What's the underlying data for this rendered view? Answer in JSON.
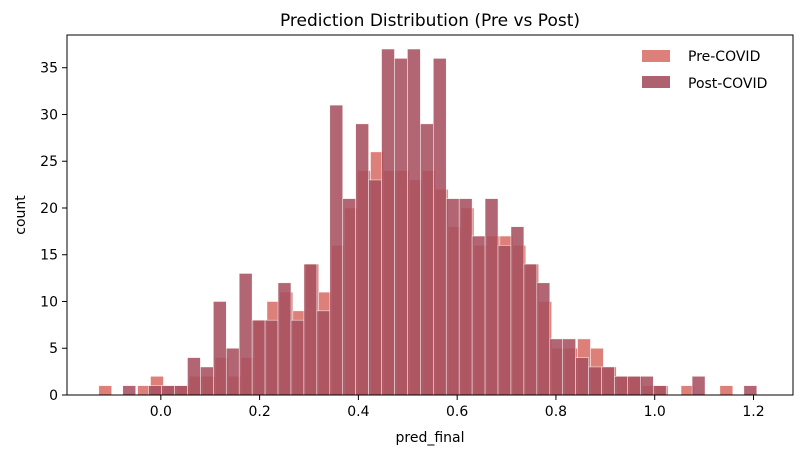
{
  "chart_data": {
    "type": "histogram",
    "title": "Prediction Distribution (Pre vs Post)",
    "xlabel": "pred_final",
    "ylabel": "count",
    "xlim": [
      -0.19,
      1.28
    ],
    "ylim": [
      0,
      38.5
    ],
    "xticks": [
      0.0,
      0.2,
      0.4,
      0.6,
      0.8,
      1.0,
      1.2
    ],
    "xtick_labels": [
      "0.0",
      "0.2",
      "0.4",
      "0.6",
      "0.8",
      "1.0",
      "1.2"
    ],
    "yticks": [
      0,
      5,
      10,
      15,
      20,
      25,
      30,
      35
    ],
    "ytick_labels": [
      "0",
      "5",
      "10",
      "15",
      "20",
      "25",
      "30",
      "35"
    ],
    "grid": false,
    "legend_position": "top-right",
    "series": [
      {
        "name": "Pre-COVID",
        "color": "#d9726c",
        "bin_width": 0.0262,
        "bins_start": [
          -0.1257,
          -0.0471,
          -0.0209,
          0.0053,
          0.0315,
          0.0577,
          0.0839,
          0.1101,
          0.1363,
          0.1625,
          0.1887,
          0.2149,
          0.2411,
          0.2673,
          0.2935,
          0.3197,
          0.3459,
          0.3721,
          0.3983,
          0.4245,
          0.4507,
          0.4769,
          0.5031,
          0.5293,
          0.5555,
          0.5817,
          0.6079,
          0.6341,
          0.6603,
          0.6865,
          0.7127,
          0.7389,
          0.7651,
          0.7913,
          0.8175,
          0.8437,
          0.8699,
          0.8961,
          0.9223,
          0.9485,
          0.9747,
          1.0009,
          1.0533,
          1.1319
        ],
        "counts": [
          1,
          1,
          2,
          1,
          1,
          2,
          2,
          4,
          2,
          4,
          8,
          10,
          11,
          9,
          14,
          11,
          16,
          20,
          24,
          26,
          24,
          24,
          23,
          24,
          22,
          18,
          20,
          16,
          17,
          17,
          16,
          14,
          10,
          5,
          5,
          6,
          5,
          3,
          2,
          2,
          1,
          1,
          1,
          1
        ]
      },
      {
        "name": "Post-COVID",
        "color": "#a7505f",
        "bin_width": 0.0262,
        "bins_start": [
          -0.0771,
          -0.0247,
          0.0015,
          0.0277,
          0.0539,
          0.0801,
          0.1063,
          0.1325,
          0.1587,
          0.1849,
          0.2111,
          0.2373,
          0.2635,
          0.2897,
          0.3159,
          0.3421,
          0.3683,
          0.3945,
          0.4207,
          0.4469,
          0.4731,
          0.4993,
          0.5255,
          0.5517,
          0.5779,
          0.6041,
          0.6303,
          0.6565,
          0.6827,
          0.7089,
          0.7351,
          0.7613,
          0.7875,
          0.8137,
          0.8399,
          0.8661,
          0.8923,
          0.9185,
          0.9447,
          0.9709,
          0.9971,
          1.0757,
          1.1805
        ],
        "counts": [
          1,
          1,
          1,
          1,
          4,
          3,
          10,
          5,
          13,
          8,
          8,
          12,
          8,
          14,
          9,
          31,
          21,
          29,
          23,
          37,
          36,
          37,
          29,
          36,
          21,
          21,
          17,
          21,
          16,
          18,
          14,
          12,
          6,
          6,
          4,
          3,
          3,
          2,
          2,
          2,
          1,
          2,
          1
        ]
      }
    ]
  }
}
